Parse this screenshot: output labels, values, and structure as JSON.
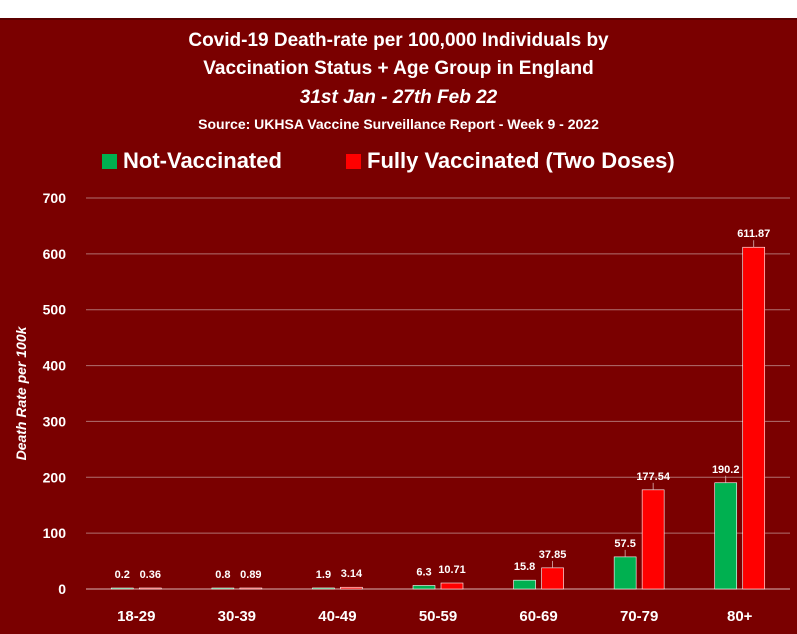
{
  "chart_data": {
    "type": "bar",
    "title": "Covid-19 Death-rate per 100,000 Individuals by",
    "title_line2": "Vaccination Status + Age Group in England",
    "subtitle": "31st Jan - 27th Feb 22",
    "source": "Source: UKHSA Vaccine Surveillance Report - Week 9 - 2022",
    "xlabel": "",
    "ylabel": "Death Rate per 100k",
    "ylim": [
      0,
      700
    ],
    "yticks": [
      0,
      100,
      200,
      300,
      400,
      500,
      600,
      700
    ],
    "grid": true,
    "legend_position": "top",
    "categories": [
      "18-29",
      "30-39",
      "40-49",
      "50-59",
      "60-69",
      "70-79",
      "80+"
    ],
    "series": [
      {
        "name": "Not-Vaccinated",
        "color": "#00b050",
        "values": [
          0.2,
          0.8,
          1.9,
          6.3,
          15.8,
          57.5,
          190.2
        ],
        "labels": [
          "0.2",
          "0.8",
          "1.9",
          "6.3",
          "15.8",
          "57.5",
          "190.2"
        ]
      },
      {
        "name": "Fully Vaccinated (Two Doses)",
        "color": "#ff0000",
        "values": [
          0.36,
          0.89,
          3.14,
          10.71,
          37.85,
          177.54,
          611.87
        ],
        "labels": [
          "0.36",
          "0.89",
          "3.14",
          "10.71",
          "37.85",
          "177.54",
          "611.87"
        ]
      }
    ]
  }
}
